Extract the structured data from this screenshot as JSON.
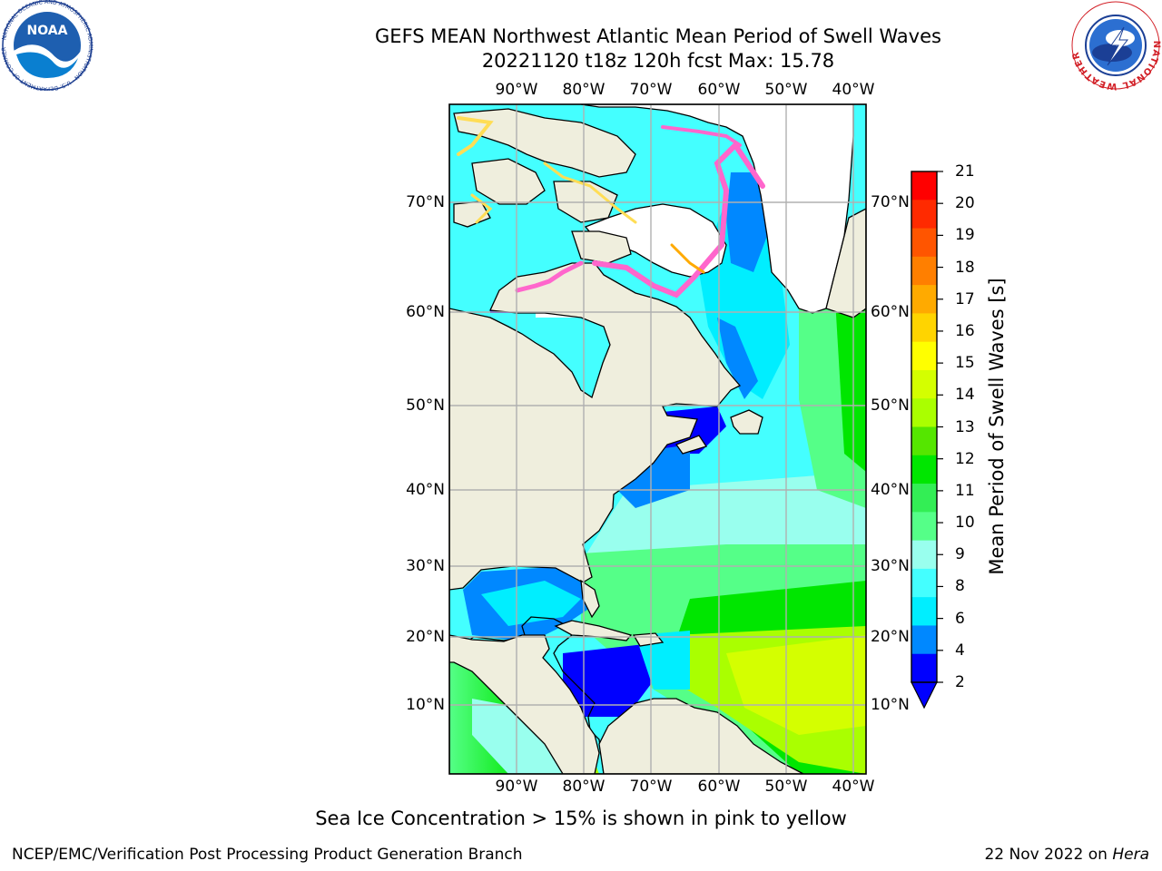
{
  "title": {
    "line1": "GEFS MEAN Northwest Atlantic Mean Period of Swell Waves",
    "line2": "20221120 t18z 120h fcst   Max: 15.78"
  },
  "lon_labels": [
    "90°W",
    "80°W",
    "70°W",
    "60°W",
    "50°W",
    "40°W"
  ],
  "lat_labels": [
    "70°N",
    "60°N",
    "50°N",
    "40°N",
    "30°N",
    "20°N",
    "10°N"
  ],
  "colorbar": {
    "label": "Mean Period of Swell Waves [s]",
    "ticks": [
      "21",
      "20",
      "19",
      "18",
      "17",
      "16",
      "15",
      "14",
      "13",
      "12",
      "11",
      "10",
      "9",
      "8",
      "6",
      "4",
      "2"
    ],
    "colors": [
      "#ff0000",
      "#ff2a00",
      "#ff5500",
      "#ff7f00",
      "#ffaa00",
      "#ffd400",
      "#ffff00",
      "#d4ff00",
      "#aaff00",
      "#55e600",
      "#00e600",
      "#33ee55",
      "#55ff88",
      "#99ffee",
      "#44ffff",
      "#00eeff",
      "#0088ff",
      "#0000ff"
    ],
    "extend_color": "#0000ff"
  },
  "map_colors": {
    "land": "#efeedd",
    "ice_free_region": "#ffffff",
    "grid": "#b0b0b0",
    "ice_pink": "#ff66cc",
    "ice_yellow": "#ffdd55"
  },
  "note": "Sea Ice Concentration > 15% is shown in pink to yellow",
  "footer": {
    "left": "NCEP/EMC/Verification Post Processing Product Generation Branch",
    "date": "22 Nov 2022 on",
    "host": "Hera"
  },
  "logos": {
    "noaa": "noaa-logo",
    "nws": "nws-logo",
    "noaa_text": "NOAA",
    "noaa_ring": "NATIONAL OCEANIC AND ATMOSPHERIC ADMINISTRATION · U.S. DEPARTMENT OF COMMERCE",
    "nws_ring": "NATIONAL WEATHER SERVICE"
  }
}
